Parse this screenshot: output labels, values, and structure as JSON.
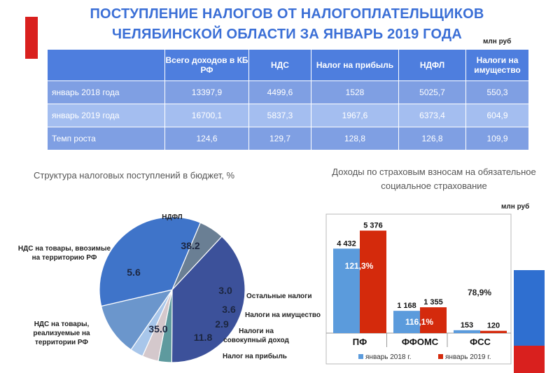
{
  "title": "ПОСТУПЛЕНИЕ НАЛОГОВ ОТ НАЛОГОПЛАТЕЛЬЩИКОВ ЧЕЛЯБИНСКОЙ ОБЛАСТИ ЗА ЯНВАРЬ 2019 ГОДА",
  "unit_top": "млн руб",
  "table": {
    "headers": [
      "",
      "Всего доходов в КБ РФ",
      "НДС",
      "Налог на прибыль",
      "НДФЛ",
      "Налоги на имущество"
    ],
    "rows": [
      {
        "label": "январь 2018 года",
        "cells": [
          "13397,9",
          "4499,6",
          "1528",
          "5025,7",
          "550,3"
        ]
      },
      {
        "label": "январь 2019 года",
        "cells": [
          "16700,1",
          "5837,3",
          "1967,6",
          "6373,4",
          "604,9"
        ]
      },
      {
        "label": "Темп роста",
        "cells": [
          "124,6",
          "129,7",
          "128,8",
          "126,8",
          "109,9"
        ]
      }
    ]
  },
  "colors": {
    "title": "#3b6fd6",
    "series_2018": "#5b9bdc",
    "series_2019": "#d42a0c",
    "accent_red": "#d9201e",
    "accent_blue": "#2f6fd0"
  },
  "chart_data": [
    {
      "type": "pie",
      "title": "Структура налоговых поступлений в бюджет, %",
      "slices": [
        {
          "label": "НДФЛ",
          "value": 38.2,
          "value_label": "38.2",
          "color": "#3c519a"
        },
        {
          "label": "Остальные налоги",
          "value": 3.0,
          "value_label": "3.0",
          "color": "#5e9a9e"
        },
        {
          "label": "Налоги на имущество",
          "value": 3.6,
          "value_label": "3.6",
          "color": "#d4c8cc"
        },
        {
          "label": "Налоги на совокупный доход",
          "value": 2.9,
          "value_label": "2.9",
          "color": "#a8c6ea"
        },
        {
          "label": "Налог на прибыль",
          "value": 11.8,
          "value_label": "11.8",
          "color": "#6b96cc"
        },
        {
          "label": "НДС на товары, реализуемые на территории РФ",
          "value": 35.0,
          "value_label": "35.0",
          "color": "#3f74c9"
        },
        {
          "label": "НДС на товары, ввозимые на территорию РФ",
          "value": 5.6,
          "value_label": "5.6",
          "color": "#6a7f94"
        }
      ]
    },
    {
      "type": "bar",
      "title": "Доходы по страховым взносам на обязательное социальное страхование",
      "unit": "млн руб",
      "categories": [
        "ПФ",
        "ФФОМС",
        "ФСС"
      ],
      "series": [
        {
          "name": "январь 2018 г.",
          "values": [
            4432,
            1168,
            153
          ],
          "labels": [
            "4 432",
            "1 168",
            "153"
          ]
        },
        {
          "name": "январь 2019 г.",
          "values": [
            5376,
            1355,
            120
          ],
          "labels": [
            "5 376",
            "1 355",
            "120"
          ]
        }
      ],
      "growth_labels": [
        "121,3%",
        "116,1%",
        "78,9%"
      ],
      "ylim": [
        0,
        5800
      ]
    }
  ]
}
